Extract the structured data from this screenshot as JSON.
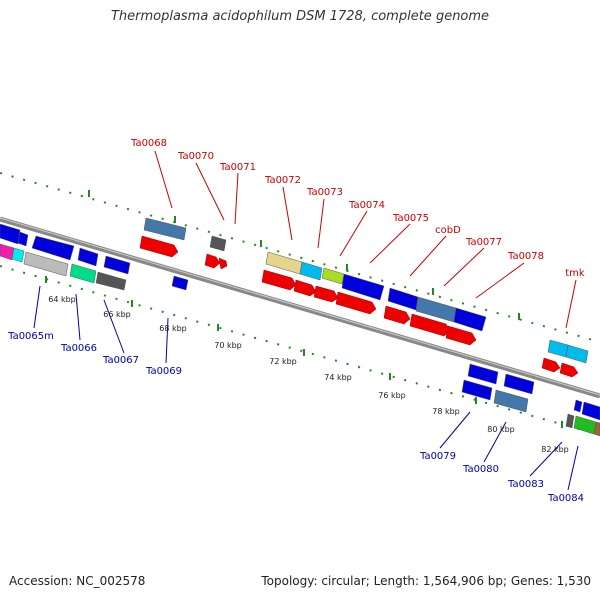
{
  "title": "Thermoplasma acidophilum DSM 1728, complete genome",
  "footer": {
    "accession": "Accession: NC_002578",
    "summary": "Topology: circular; Length: 1,564,906 bp; Genes: 1,530"
  },
  "colors": {
    "top_label": "#cc0000",
    "bottom_label": "#0000aa",
    "backbone": "#888888",
    "tick": "#228822"
  },
  "axis": {
    "ticks": [
      "64 kbp",
      "66 kbp",
      "68 kbp",
      "70 kbp",
      "72 kbp",
      "74 kbp",
      "76 kbp",
      "78 kbp",
      "80 kbp",
      "82 kbp"
    ]
  },
  "top_labels": [
    "Ta0068",
    "Ta0070",
    "Ta0071",
    "Ta0072",
    "Ta0073",
    "Ta0074",
    "Ta0075",
    "cobD",
    "Ta0077",
    "Ta0078",
    "tmk"
  ],
  "bottom_labels": [
    "Ta0065m",
    "Ta0066",
    "Ta0067",
    "Ta0069",
    "Ta0079",
    "Ta0080",
    "Ta0083",
    "Ta0084"
  ]
}
